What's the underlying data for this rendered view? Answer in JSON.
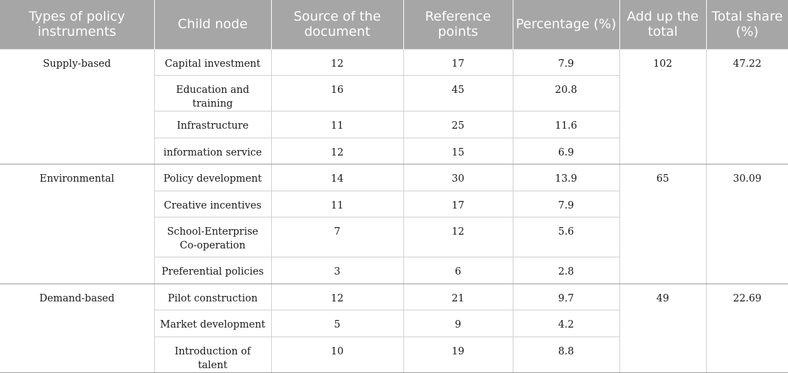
{
  "table": {
    "headers": [
      "Types of policy instruments",
      "Child node",
      "Source of the document",
      "Reference points",
      "Percentage (%)",
      "Add up the total",
      "Total share (%)"
    ],
    "groups": [
      {
        "type": "Supply-based",
        "total": "102",
        "share": "47.22",
        "rows": [
          {
            "child": "Capital investment",
            "source": "12",
            "points": "17",
            "percent": "7.9"
          },
          {
            "child": "Education and training",
            "source": "16",
            "points": "45",
            "percent": "20.8"
          },
          {
            "child": "Infrastructure",
            "source": "11",
            "points": "25",
            "percent": "11.6"
          },
          {
            "child": "information service",
            "source": "12",
            "points": "15",
            "percent": "6.9"
          }
        ]
      },
      {
        "type": "Environmental",
        "total": "65",
        "share": "30.09",
        "rows": [
          {
            "child": "Policy development",
            "source": "14",
            "points": "30",
            "percent": "13.9"
          },
          {
            "child": "Creative incentives",
            "source": "11",
            "points": "17",
            "percent": "7.9"
          },
          {
            "child": "School-Enterprise Co-operation",
            "source": "7",
            "points": "12",
            "percent": "5.6"
          },
          {
            "child": "Preferential policies",
            "source": "3",
            "points": "6",
            "percent": "2.8"
          }
        ]
      },
      {
        "type": "Demand-based",
        "total": "49",
        "share": "22.69",
        "rows": [
          {
            "child": "Pilot construction",
            "source": "12",
            "points": "21",
            "percent": "9.7"
          },
          {
            "child": "Market development",
            "source": "5",
            "points": "9",
            "percent": "4.2"
          },
          {
            "child": "Introduction of talent",
            "source": "10",
            "points": "19",
            "percent": "8.8"
          }
        ]
      }
    ]
  }
}
